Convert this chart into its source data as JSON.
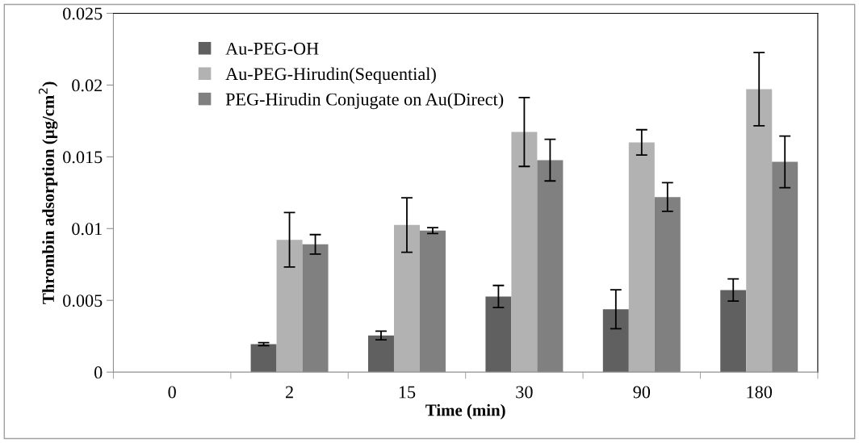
{
  "chart_data": {
    "type": "bar",
    "xlabel": "Time (min)",
    "ylabel": "Thrombin adsorption (μg/cm$^{2}$)",
    "categories": [
      "0",
      "2",
      "15",
      "30",
      "90",
      "180"
    ],
    "series": [
      {
        "name": "Au-PEG-OH",
        "color": "#606060",
        "values": [
          0,
          0.00195,
          0.00255,
          0.00527,
          0.00438,
          0.00572
        ],
        "errors": [
          null,
          0.0001,
          0.0003,
          0.00077,
          0.00136,
          0.00077
        ]
      },
      {
        "name": "Au-PEG-Hirudin(Sequential)",
        "color": "#b2b2b2",
        "values": [
          0,
          0.00922,
          0.01025,
          0.01673,
          0.01601,
          0.01971
        ],
        "errors": [
          null,
          0.0019,
          0.0019,
          0.0024,
          0.00088,
          0.00255
        ]
      },
      {
        "name": "PEG-Hirudin Conjugate on Au(Direct)",
        "color": "#808080",
        "values": [
          0,
          0.0089,
          0.00986,
          0.01477,
          0.0122,
          0.01465
        ],
        "errors": [
          null,
          0.00068,
          0.0002,
          0.00145,
          0.001,
          0.0018
        ]
      }
    ],
    "ylim": [
      0,
      0.025
    ],
    "yticks": [
      {
        "value": 0,
        "label": "0"
      },
      0.005,
      0.01,
      0.015,
      0.02,
      0.025
    ],
    "grid": false,
    "legend": "top left"
  }
}
